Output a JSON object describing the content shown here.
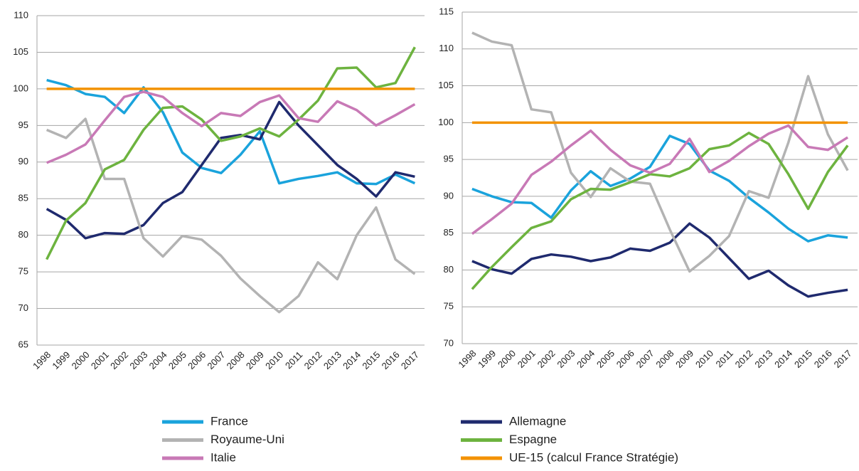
{
  "chart_data": [
    {
      "type": "line",
      "categories": [
        "1998",
        "1999",
        "2000",
        "2001",
        "2002",
        "2003",
        "2004",
        "2005",
        "2006",
        "2007",
        "2008",
        "2009",
        "2010",
        "2011",
        "2012",
        "2013",
        "2014",
        "2015",
        "2016",
        "2017"
      ],
      "ylim": [
        65,
        110
      ],
      "yticks": [
        65,
        70,
        75,
        80,
        85,
        90,
        95,
        100,
        105,
        110
      ],
      "grid": true,
      "series": [
        {
          "name": "France",
          "color": "#1aa3dc",
          "values": [
            101.2,
            100.5,
            99.3,
            98.9,
            96.7,
            100.2,
            96.8,
            91.3,
            89.2,
            88.5,
            91.0,
            94.2,
            87.1,
            87.7,
            88.1,
            88.6,
            87.1,
            87.0,
            88.3,
            87.1
          ]
        },
        {
          "name": "Allemagne",
          "color": "#1f2a6e",
          "values": [
            83.6,
            82.1,
            79.6,
            80.3,
            80.2,
            81.4,
            84.4,
            85.9,
            89.6,
            93.3,
            93.7,
            93.1,
            98.2,
            95.0,
            92.3,
            89.6,
            87.7,
            85.3,
            88.6,
            88.0
          ]
        },
        {
          "name": "Royaume-Uni",
          "color": "#b3b3b3",
          "values": [
            94.4,
            93.3,
            95.9,
            87.7,
            87.7,
            79.6,
            77.1,
            79.9,
            79.4,
            77.2,
            74.1,
            71.7,
            69.5,
            71.7,
            76.3,
            74.0,
            80.0,
            83.8,
            76.7,
            74.7
          ]
        },
        {
          "name": "Espagne",
          "color": "#6db33f",
          "values": [
            76.7,
            82.0,
            84.4,
            89.0,
            90.3,
            94.4,
            97.4,
            97.6,
            95.8,
            92.9,
            93.5,
            94.6,
            93.5,
            95.8,
            98.4,
            102.8,
            102.9,
            100.2,
            100.8,
            105.7
          ]
        },
        {
          "name": "Italie",
          "color": "#c879b6",
          "values": [
            89.9,
            91.0,
            92.4,
            95.7,
            98.9,
            99.6,
            98.9,
            96.7,
            94.9,
            96.7,
            96.3,
            98.2,
            99.1,
            96.0,
            95.5,
            98.3,
            97.1,
            95.0,
            96.4,
            97.9
          ]
        },
        {
          "name": "UE-15 (calcul France Stratégie)",
          "color": "#f39200",
          "values": [
            100,
            100,
            100,
            100,
            100,
            100,
            100,
            100,
            100,
            100,
            100,
            100,
            100,
            100,
            100,
            100,
            100,
            100,
            100,
            100
          ]
        }
      ]
    },
    {
      "type": "line",
      "categories": [
        "1998",
        "1999",
        "2000",
        "2001",
        "2002",
        "2003",
        "2004",
        "2005",
        "2006",
        "2007",
        "2008",
        "2009",
        "2010",
        "2011",
        "2012",
        "2013",
        "2014",
        "2015",
        "2016",
        "2017"
      ],
      "ylim": [
        70,
        115
      ],
      "yticks": [
        70,
        75,
        80,
        85,
        90,
        95,
        100,
        105,
        110,
        115
      ],
      "grid": true,
      "series": [
        {
          "name": "France",
          "color": "#1aa3dc",
          "values": [
            91.0,
            90.0,
            89.2,
            89.1,
            87.1,
            90.8,
            93.4,
            91.4,
            92.4,
            94.0,
            98.2,
            97.1,
            93.5,
            92.1,
            89.8,
            87.8,
            85.6,
            83.9,
            84.7,
            84.4
          ]
        },
        {
          "name": "Allemagne",
          "color": "#1f2a6e",
          "values": [
            81.2,
            80.1,
            79.5,
            81.5,
            82.1,
            81.8,
            81.2,
            81.7,
            82.9,
            82.6,
            83.7,
            86.3,
            84.4,
            81.6,
            78.8,
            79.9,
            77.9,
            76.4,
            76.9,
            77.3
          ]
        },
        {
          "name": "Royaume-Uni",
          "color": "#b3b3b3",
          "values": [
            112.2,
            111.0,
            110.5,
            101.8,
            101.4,
            93.2,
            89.9,
            93.8,
            92.0,
            91.7,
            85.5,
            79.8,
            81.9,
            84.6,
            90.7,
            89.8,
            97.3,
            106.3,
            98.4,
            93.5
          ]
        },
        {
          "name": "Espagne",
          "color": "#6db33f",
          "values": [
            77.4,
            80.4,
            83.1,
            85.7,
            86.6,
            89.6,
            91.0,
            90.9,
            91.9,
            93.0,
            92.7,
            93.8,
            96.4,
            96.9,
            98.6,
            97.1,
            93.0,
            88.3,
            93.3,
            96.9
          ]
        },
        {
          "name": "Italie",
          "color": "#c879b6",
          "values": [
            84.9,
            86.9,
            89.0,
            92.9,
            94.7,
            96.9,
            98.9,
            96.3,
            94.2,
            93.2,
            94.4,
            97.8,
            93.3,
            94.8,
            96.8,
            98.5,
            99.6,
            96.7,
            96.3,
            98.0
          ]
        },
        {
          "name": "UE-15 (calcul France Stratégie)",
          "color": "#f39200",
          "values": [
            100,
            100,
            100,
            100,
            100,
            100,
            100,
            100,
            100,
            100,
            100,
            100,
            100,
            100,
            100,
            100,
            100,
            100,
            100,
            100
          ]
        }
      ]
    }
  ]
}
